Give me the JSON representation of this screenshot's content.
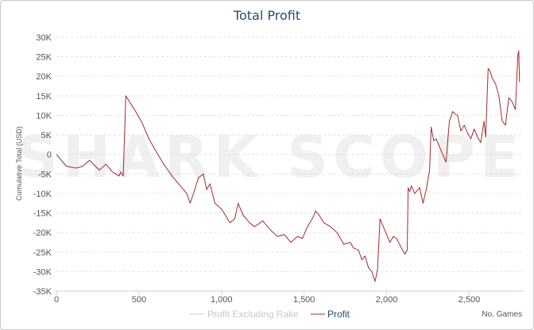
{
  "chart_data": {
    "type": "line",
    "title": "Total Profit",
    "ylabel": "Cumulative Total (USD)",
    "xlabel": "No. Games",
    "xlim": [
      0,
      2830
    ],
    "ylim": [
      -35000,
      30000
    ],
    "x_ticks": [
      0,
      500,
      1000,
      1500,
      2000,
      2500
    ],
    "x_tick_labels": [
      "0",
      "500",
      "1,000",
      "1,500",
      "2,000",
      "2,500"
    ],
    "y_ticks": [
      30000,
      25000,
      20000,
      15000,
      10000,
      5000,
      0,
      -5000,
      -10000,
      -15000,
      -20000,
      -25000,
      -30000,
      -35000
    ],
    "y_tick_labels": [
      "30K",
      "25K",
      "20K",
      "15K",
      "10K",
      "5K",
      "0",
      "-5K",
      "-10K",
      "-15K",
      "-20K",
      "-25K",
      "-30K",
      "-35K"
    ],
    "grid": true,
    "legend_position": "bottom-center",
    "watermark": "SHARK SCOPE",
    "series": [
      {
        "name": "Profit Excluding Rake",
        "color": "#c8c8c8",
        "x": [],
        "y": []
      },
      {
        "name": "Profit",
        "color": "#a52a2a",
        "x": [
          0,
          60,
          120,
          160,
          200,
          260,
          300,
          340,
          380,
          390,
          405,
          420,
          450,
          480,
          520,
          560,
          600,
          650,
          700,
          750,
          790,
          810,
          830,
          860,
          890,
          910,
          930,
          960,
          1000,
          1030,
          1050,
          1080,
          1100,
          1130,
          1170,
          1200,
          1250,
          1300,
          1340,
          1380,
          1420,
          1460,
          1490,
          1520,
          1550,
          1570,
          1590,
          1620,
          1660,
          1700,
          1740,
          1780,
          1800,
          1830,
          1850,
          1870,
          1890,
          1910,
          1930,
          1945,
          1960,
          1980,
          2000,
          2020,
          2040,
          2060,
          2090,
          2110,
          2125,
          2130,
          2140,
          2150,
          2170,
          2200,
          2220,
          2240,
          2260,
          2270,
          2285,
          2300,
          2330,
          2360,
          2380,
          2400,
          2410,
          2430,
          2450,
          2470,
          2490,
          2510,
          2530,
          2550,
          2570,
          2590,
          2600,
          2615,
          2625,
          2640,
          2660,
          2680,
          2700,
          2720,
          2740,
          2760,
          2780,
          2795,
          2800,
          2805
        ],
        "y": [
          0,
          -3000,
          -3500,
          -3000,
          -1500,
          -4000,
          -2500,
          -4500,
          -5500,
          -4500,
          -5500,
          15000,
          13000,
          11000,
          8000,
          4000,
          1000,
          -2500,
          -5500,
          -8000,
          -10000,
          -12500,
          -10000,
          -6000,
          -5000,
          -9000,
          -7500,
          -12500,
          -14000,
          -16000,
          -17500,
          -16500,
          -12500,
          -15500,
          -17500,
          -18500,
          -17000,
          -19500,
          -21000,
          -20500,
          -22500,
          -21000,
          -21500,
          -18500,
          -16500,
          -14500,
          -15500,
          -17500,
          -18500,
          -20000,
          -23000,
          -22500,
          -24000,
          -24500,
          -27000,
          -26000,
          -29000,
          -30000,
          -32500,
          -29500,
          -16500,
          -18500,
          -20500,
          -22500,
          -21000,
          -21500,
          -24000,
          -25500,
          -24500,
          -8500,
          -9500,
          -8000,
          -10000,
          -8500,
          -12500,
          -9000,
          -4000,
          7000,
          3500,
          4000,
          1000,
          -2000,
          8500,
          11000,
          10500,
          10000,
          6000,
          7500,
          5500,
          4000,
          6500,
          4500,
          3000,
          8500,
          4500,
          22000,
          21500,
          19500,
          18000,
          15000,
          8500,
          7500,
          14500,
          13500,
          11500,
          25500,
          26500,
          18500
        ]
      }
    ]
  }
}
